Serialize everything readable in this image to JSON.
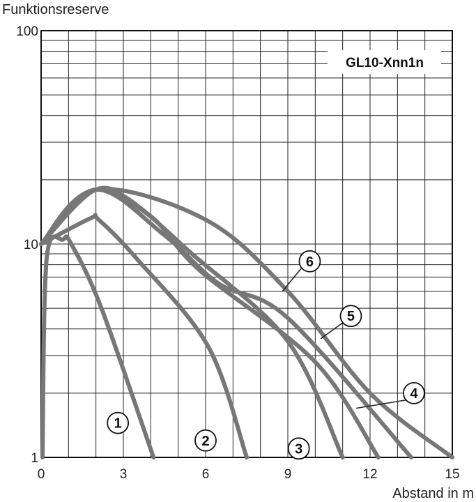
{
  "chart_data": {
    "type": "line",
    "title": "GL10-Xnn1n",
    "ylabel": "Funktionsreserve",
    "xlabel": "Abstand in m",
    "xlim": [
      0,
      15
    ],
    "ylim": [
      1,
      100
    ],
    "yscale": "log",
    "grid": true,
    "x_ticks": [
      0,
      3,
      6,
      9,
      12,
      15
    ],
    "y_ticks": [
      1,
      10,
      100
    ],
    "series": [
      {
        "name": "1",
        "points": [
          [
            0.05,
            1
          ],
          [
            0.2,
            8.5
          ],
          [
            0.8,
            10.5
          ],
          [
            1.1,
            10
          ],
          [
            2.2,
            5
          ],
          [
            4.1,
            1
          ]
        ]
      },
      {
        "name": "2",
        "points": [
          [
            0,
            10
          ],
          [
            1.8,
            13.2
          ],
          [
            2.1,
            13
          ],
          [
            3.5,
            8.5
          ],
          [
            6.1,
            3.3
          ],
          [
            7.5,
            1
          ]
        ]
      },
      {
        "name": "3",
        "points": [
          [
            0,
            10
          ],
          [
            2,
            18
          ],
          [
            3.5,
            15
          ],
          [
            5.5,
            9
          ],
          [
            9,
            3.5
          ],
          [
            11,
            1
          ]
        ]
      },
      {
        "name": "4",
        "points": [
          [
            0,
            10
          ],
          [
            2,
            18
          ],
          [
            4,
            13.5
          ],
          [
            5.8,
            7.5
          ],
          [
            10,
            2.8
          ],
          [
            12.3,
            1
          ]
        ]
      },
      {
        "name": "5",
        "points": [
          [
            0,
            10
          ],
          [
            2,
            18
          ],
          [
            4.5,
            11
          ],
          [
            6.5,
            6.5
          ],
          [
            9,
            4.5
          ],
          [
            13.5,
            1
          ]
        ]
      },
      {
        "name": "6",
        "points": [
          [
            0,
            10
          ],
          [
            2,
            18
          ],
          [
            6,
            13
          ],
          [
            9,
            6
          ],
          [
            12,
            2
          ],
          [
            15,
            1
          ]
        ]
      }
    ],
    "annotations": [
      {
        "label": "1",
        "x": 2.8,
        "y": 1.45
      },
      {
        "label": "2",
        "x": 6.0,
        "y": 1.2
      },
      {
        "label": "3",
        "x": 9.4,
        "y": 1.1
      },
      {
        "label": "4",
        "x": 13.6,
        "y": 2.0
      },
      {
        "label": "5",
        "x": 11.3,
        "y": 4.6
      },
      {
        "label": "6",
        "x": 9.8,
        "y": 8.3
      }
    ]
  }
}
